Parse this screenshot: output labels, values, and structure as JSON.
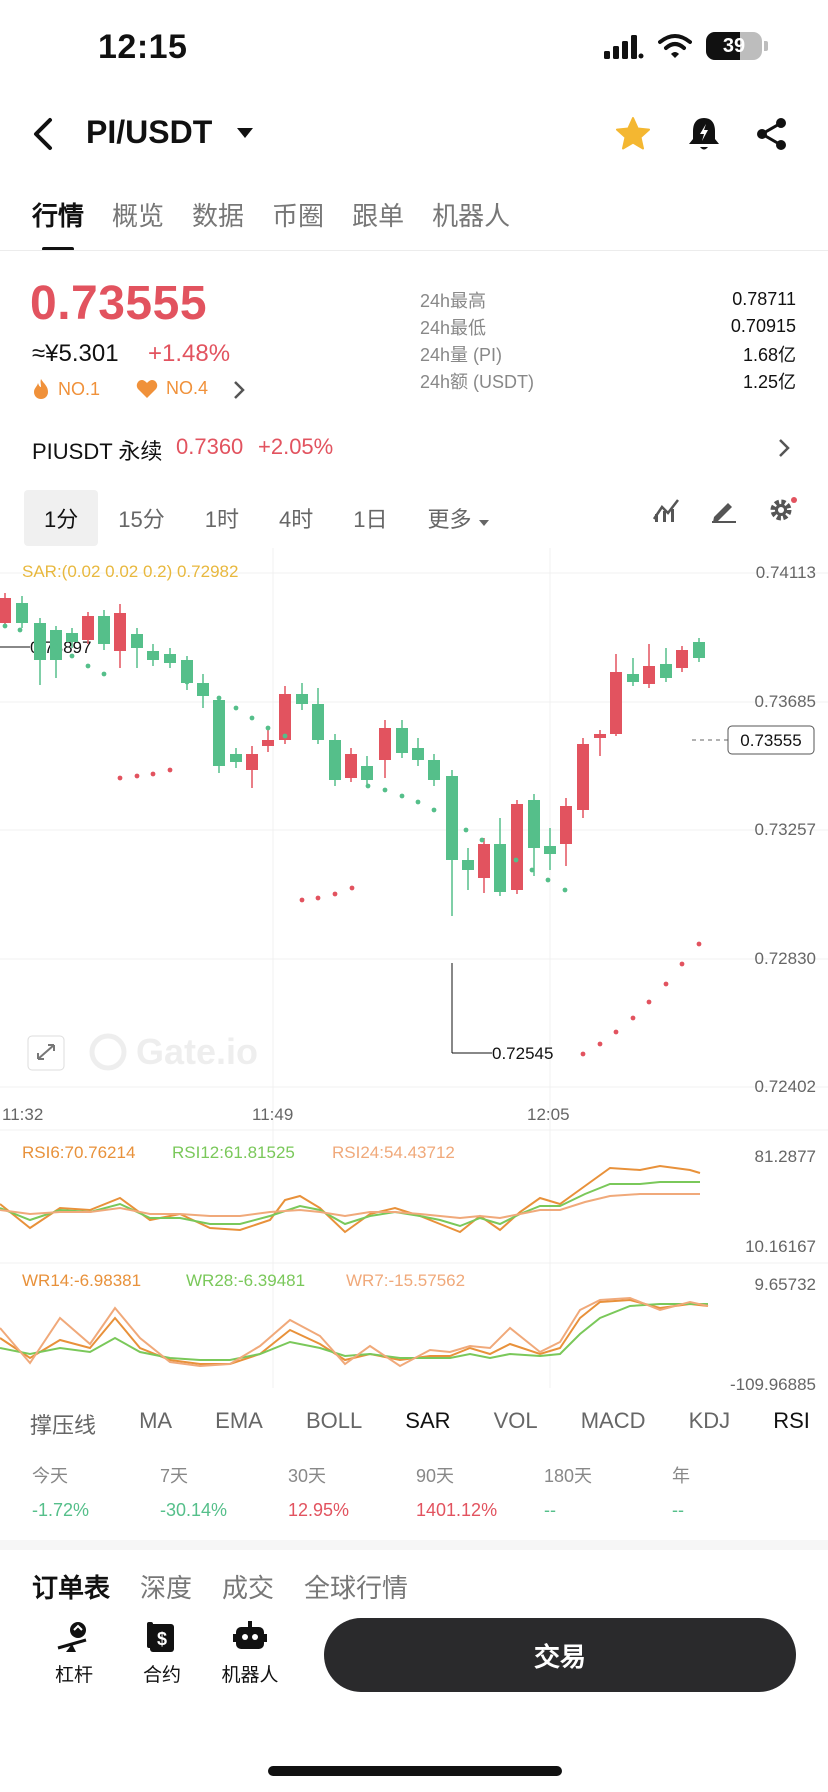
{
  "status_bar": {
    "time": "12:15",
    "battery": "39"
  },
  "header": {
    "pair": "PI/USDT"
  },
  "tabs": [
    "行情",
    "概览",
    "数据",
    "币圈",
    "跟单",
    "机器人"
  ],
  "price": {
    "last": "0.73555",
    "cny": "≈¥5.301",
    "change": "+1.48%",
    "rank1": "NO.1",
    "rank2": "NO.4"
  },
  "stats": [
    {
      "label": "24h最高",
      "value": "0.78711"
    },
    {
      "label": "24h最低",
      "value": "0.70915"
    },
    {
      "label": "24h量 (PI)",
      "value": "1.68亿"
    },
    {
      "label": "24h额 (USDT)",
      "value": "1.25亿"
    }
  ],
  "perpetual": {
    "label": "PIUSDT 永续",
    "price": "0.7360",
    "change": "+2.05%"
  },
  "intervals": [
    "1分",
    "15分",
    "1时",
    "4时",
    "1日",
    "更多"
  ],
  "chart": {
    "sar_label": "SAR:(0.02 0.02 0.2) 0.72982",
    "price_axis": [
      "0.74113",
      "0.73685",
      "0.73257",
      "0.72830",
      "0.72402"
    ],
    "current_price_tag": "0.73555",
    "high_mark": "0.73897",
    "low_mark": "0.72545",
    "time_axis": [
      "11:32",
      "11:49",
      "12:05"
    ],
    "watermark": "Gate.io",
    "rsi_labels": [
      "RSI6:70.76214",
      "RSI12:61.81525",
      "RSI24:54.43712"
    ],
    "rsi_axis": [
      "81.2877",
      "10.16167"
    ],
    "wr_labels": [
      "WR14:-6.98381",
      "WR28:-6.39481",
      "WR7:-15.57562"
    ],
    "wr_axis": [
      "9.65732",
      "-109.96885"
    ],
    "colors": {
      "up": "#e2535f",
      "down": "#55bf8a",
      "sar_label": "#e8b83e"
    }
  },
  "chart_data": {
    "type": "candlestick",
    "title": "",
    "x": [
      "11:32",
      "11:49",
      "12:05"
    ],
    "ylim": [
      0.72402,
      0.74113
    ]
  },
  "indicators": [
    "撑压线",
    "MA",
    "EMA",
    "BOLL",
    "SAR",
    "VOL",
    "MACD",
    "KDJ",
    "RSI"
  ],
  "performance": [
    {
      "label": "今天",
      "value": "-1.72%",
      "color": "#55bf8a"
    },
    {
      "label": "7天",
      "value": "-30.14%",
      "color": "#55bf8a"
    },
    {
      "label": "30天",
      "value": "12.95%",
      "color": "#e2535f"
    },
    {
      "label": "90天",
      "value": "1401.12%",
      "color": "#e2535f"
    },
    {
      "label": "180天",
      "value": "--",
      "color": "#55bf8a"
    },
    {
      "label": "年",
      "value": "--",
      "color": "#55bf8a"
    }
  ],
  "bottom_tabs": [
    "订单表",
    "深度",
    "成交",
    "全球行情"
  ],
  "actions": {
    "leverage": "杠杆",
    "contract": "合约",
    "bot": "机器人",
    "trade": "交易"
  }
}
